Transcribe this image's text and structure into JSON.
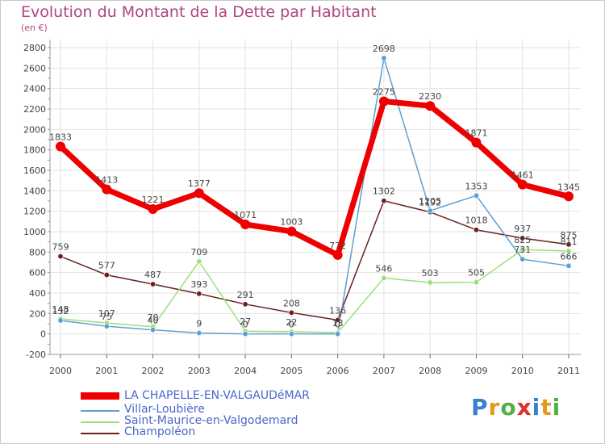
{
  "title": "Evolution du Montant de la Dette par Habitant",
  "subtitle": "(en €)",
  "logo": "Proxiti",
  "chart_data": {
    "type": "line",
    "title": "Evolution du Montant de la Dette par Habitant",
    "subtitle": "(en €)",
    "x": [
      "2000",
      "2001",
      "2002",
      "2003",
      "2004",
      "2005",
      "2006",
      "2007",
      "2008",
      "2009",
      "2010",
      "2011"
    ],
    "ylim": [
      -200,
      2800
    ],
    "yticks": [
      -200,
      0,
      200,
      400,
      600,
      800,
      1000,
      1200,
      1400,
      1600,
      1800,
      2000,
      2200,
      2400,
      2600,
      2800
    ],
    "grid": true,
    "legend_position": "bottom-left",
    "series": [
      {
        "name": "LA CHAPELLE-EN-VALGAUDéMAR",
        "color": "#ee0000",
        "values": [
          1833,
          1413,
          1221,
          1377,
          1071,
          1003,
          772,
          2275,
          2230,
          1871,
          1461,
          1345
        ]
      },
      {
        "name": "Villar-Loubière",
        "color": "#5d9fd3",
        "values": [
          132,
          75,
          40,
          9,
          0,
          0,
          0,
          2698,
          1205,
          1353,
          731,
          666
        ]
      },
      {
        "name": "Saint-Maurice-en-Valgodemard",
        "color": "#99e07a",
        "values": [
          148,
          107,
          70,
          709,
          27,
          22,
          13,
          546,
          503,
          505,
          825,
          811
        ]
      },
      {
        "name": "Champoléon",
        "color": "#6b1f1f",
        "values": [
          759,
          577,
          487,
          393,
          291,
          208,
          136,
          1302,
          1192,
          1018,
          937,
          875
        ]
      }
    ]
  }
}
